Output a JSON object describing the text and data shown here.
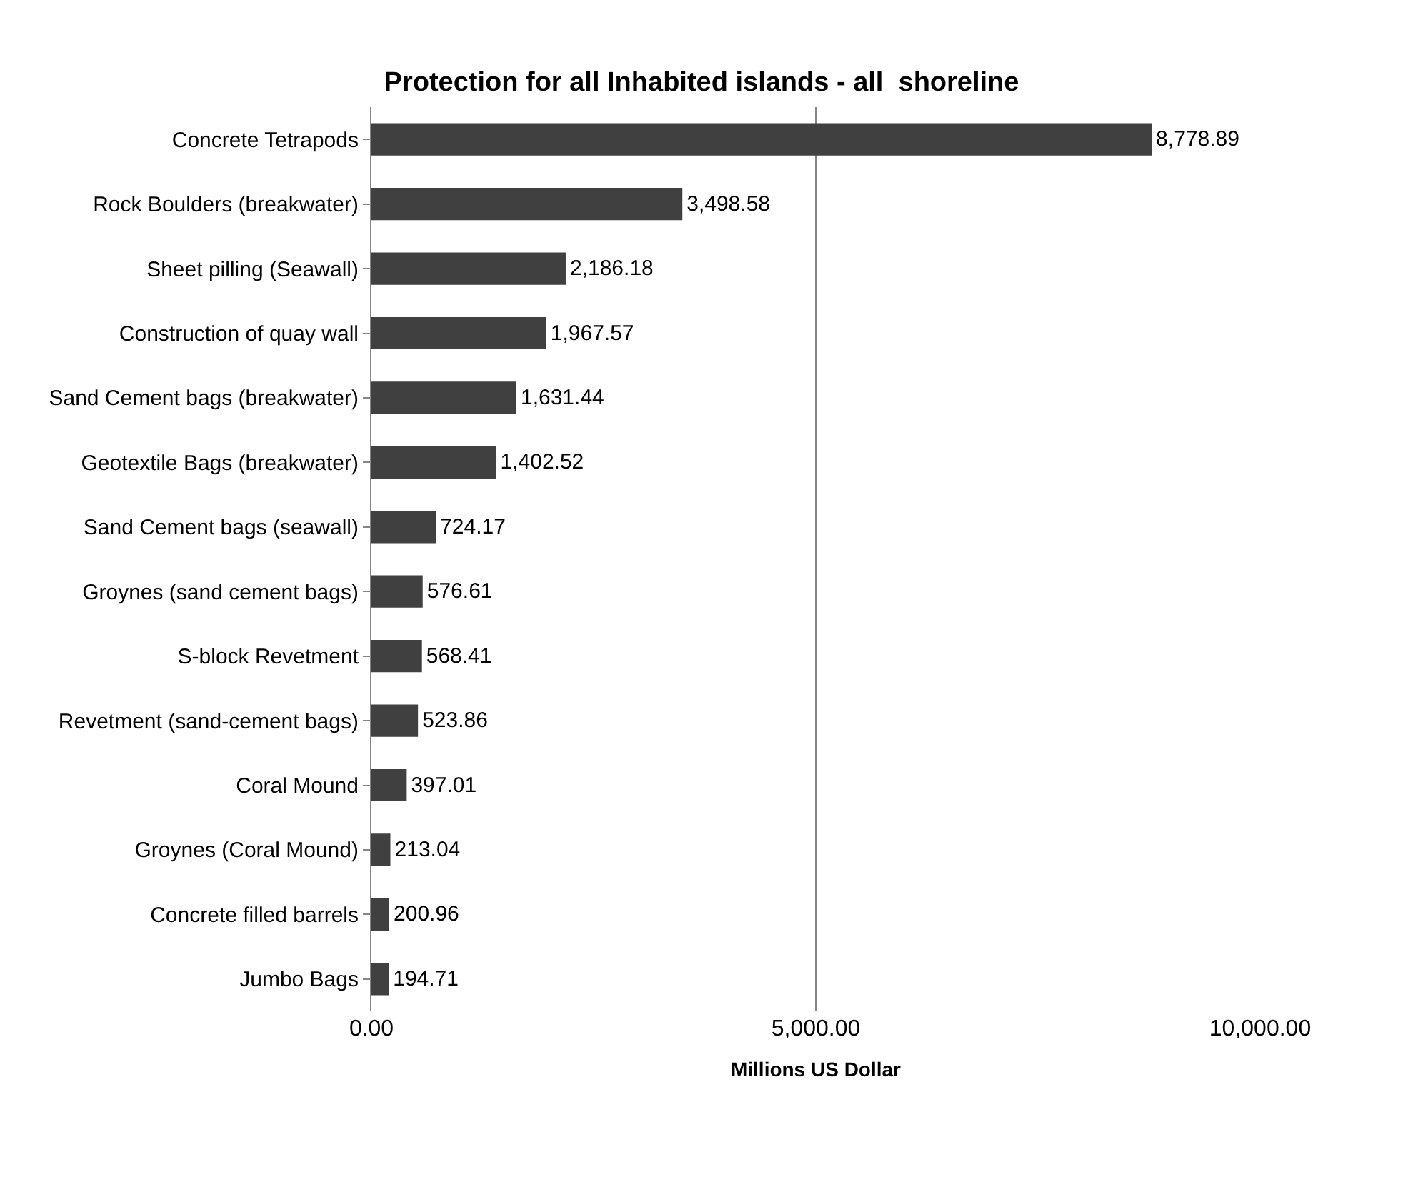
{
  "chart_data": {
    "type": "bar",
    "orientation": "horizontal",
    "title": "Protection for all Inhabited islands - all  shoreline",
    "xlabel": "Millions US Dollar",
    "categories": [
      "Concrete Tetrapods",
      "Rock Boulders (breakwater)",
      "Sheet pilling (Seawall)",
      "Construction of quay wall",
      "Sand Cement bags (breakwater)",
      "Geotextile Bags (breakwater)",
      "Sand Cement bags (seawall)",
      "Groynes (sand cement bags)",
      "S-block Revetment",
      "Revetment (sand-cement bags)",
      "Coral Mound",
      "Groynes (Coral Mound)",
      "Concrete filled barrels",
      "Jumbo Bags"
    ],
    "values": [
      8778.89,
      3498.58,
      2186.18,
      1967.57,
      1631.44,
      1402.52,
      724.17,
      576.61,
      568.41,
      523.86,
      397.01,
      213.04,
      200.96,
      194.71
    ],
    "value_labels": [
      "8,778.89",
      "3,498.58",
      "2,186.18",
      "1,967.57",
      "1,631.44",
      "1,402.52",
      "724.17",
      "576.61",
      "568.41",
      "523.86",
      "397.01",
      "213.04",
      "200.96",
      "194.71"
    ],
    "color": "#404040",
    "xlim": [
      0,
      10000
    ],
    "xticks": [
      {
        "value": 0,
        "label": "0.00"
      },
      {
        "value": 5000,
        "label": "5,000.00"
      },
      {
        "value": 10000,
        "label": "10,000.00"
      }
    ],
    "grid": "x"
  }
}
